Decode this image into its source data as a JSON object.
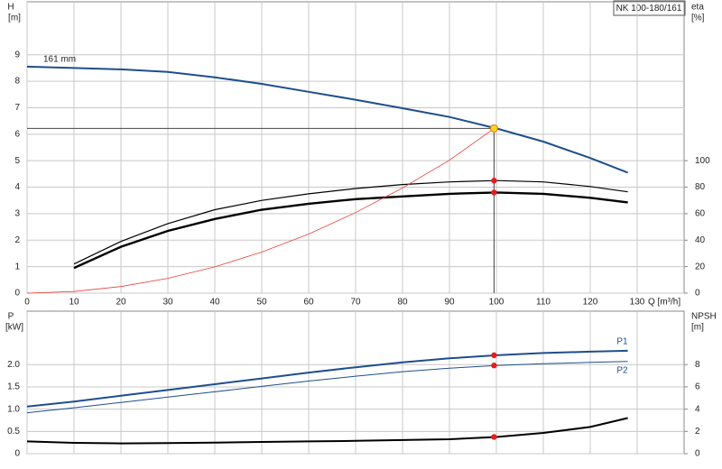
{
  "chart_data": [
    {
      "type": "line",
      "annotation": "NK 100-180/161",
      "ylabel": "H",
      "yunit": "[m]",
      "y2label": "eta",
      "y2unit": "[%]",
      "xlabel": "Q [m³/h]",
      "xlim": [
        0,
        140
      ],
      "xticks": [
        0,
        10,
        20,
        30,
        40,
        50,
        60,
        70,
        80,
        90,
        100,
        110,
        120,
        130
      ],
      "ylim": [
        0,
        11
      ],
      "yticks": [
        0,
        1,
        2,
        3,
        4,
        5,
        6,
        7,
        8,
        9
      ],
      "y2lim": [
        0,
        220
      ],
      "y2ticks": [
        0,
        20,
        40,
        60,
        80,
        100
      ],
      "grid": true,
      "series": [
        {
          "name": "161 mm",
          "color": "#1f4e8c",
          "width": 2,
          "axis": "y",
          "x": [
            0,
            10,
            20,
            30,
            40,
            50,
            60,
            70,
            80,
            90,
            100,
            110,
            120,
            128
          ],
          "values": [
            8.55,
            8.5,
            8.45,
            8.35,
            8.15,
            7.9,
            7.6,
            7.3,
            6.98,
            6.65,
            6.22,
            5.72,
            5.1,
            4.55
          ]
        },
        {
          "color": "#000000",
          "width": 1.2,
          "axis": "y2",
          "x": [
            10,
            20,
            30,
            40,
            50,
            60,
            70,
            80,
            90,
            100,
            110,
            120,
            128
          ],
          "values": [
            22,
            39,
            52.5,
            63,
            70,
            75,
            79,
            82,
            84,
            85,
            84,
            80.5,
            76.5
          ]
        },
        {
          "color": "#000000",
          "width": 2.4,
          "axis": "y2",
          "x": [
            10,
            20,
            30,
            40,
            50,
            60,
            70,
            80,
            90,
            100,
            110,
            120,
            128
          ],
          "values": [
            19,
            35,
            47,
            56,
            63,
            67.5,
            71,
            73,
            75,
            76,
            75,
            72,
            68.5
          ]
        },
        {
          "color": "#e8413a",
          "width": 0.8,
          "axis": "y",
          "x": [
            0,
            10,
            20,
            30,
            40,
            50,
            60,
            70,
            80,
            90,
            99.5
          ],
          "values": [
            0,
            0.06,
            0.25,
            0.56,
            0.99,
            1.55,
            2.23,
            3.04,
            3.97,
            5.02,
            6.22
          ]
        }
      ],
      "operating_point": {
        "x": 99.5,
        "y": 6.22
      },
      "markers": [
        {
          "x": 99.5,
          "value": 85,
          "axis": "y2"
        },
        {
          "x": 99.5,
          "value": 76,
          "axis": "y2"
        }
      ]
    },
    {
      "type": "line",
      "ylabel": "P",
      "yunit": "[kW]",
      "y2label": "NPSH",
      "y2unit": "[m]",
      "xlim": [
        0,
        140
      ],
      "ylim": [
        0,
        3.2
      ],
      "yticks": [
        0,
        0.5,
        {
          "value": 1,
          "label": "1.0"
        },
        1.5,
        {
          "value": 2,
          "label": "2.0"
        }
      ],
      "y2lim": [
        0,
        12.8
      ],
      "y2ticks": [
        0,
        2,
        4,
        6,
        8
      ],
      "grid": true,
      "series": [
        {
          "name": "P1",
          "color": "#1f4e8c",
          "width": 2,
          "axis": "y",
          "x": [
            0,
            10,
            20,
            30,
            40,
            50,
            60,
            70,
            80,
            90,
            100,
            110,
            120,
            128
          ],
          "values": [
            1.06,
            1.17,
            1.3,
            1.43,
            1.56,
            1.69,
            1.82,
            1.94,
            2.05,
            2.14,
            2.21,
            2.26,
            2.29,
            2.31
          ]
        },
        {
          "name": "P2",
          "color": "#1f4e8c",
          "width": 1,
          "axis": "y",
          "x": [
            0,
            10,
            20,
            30,
            40,
            50,
            60,
            70,
            80,
            90,
            100,
            110,
            120,
            128
          ],
          "values": [
            0.92,
            1.03,
            1.15,
            1.27,
            1.39,
            1.51,
            1.63,
            1.74,
            1.84,
            1.92,
            1.98,
            2.02,
            2.05,
            2.07
          ]
        },
        {
          "color": "#000000",
          "width": 2,
          "axis": "y2",
          "x": [
            0,
            10,
            20,
            30,
            40,
            50,
            60,
            70,
            80,
            90,
            100,
            110,
            120,
            128
          ],
          "values": [
            1.1,
            0.97,
            0.92,
            0.95,
            1.0,
            1.05,
            1.1,
            1.15,
            1.22,
            1.3,
            1.5,
            1.86,
            2.4,
            3.2
          ]
        }
      ],
      "markers": [
        {
          "x": 99.5,
          "value": 2.21,
          "axis": "y"
        },
        {
          "x": 99.5,
          "value": 1.98,
          "axis": "y"
        },
        {
          "x": 99.5,
          "value": 1.5,
          "axis": "y2"
        }
      ]
    }
  ]
}
